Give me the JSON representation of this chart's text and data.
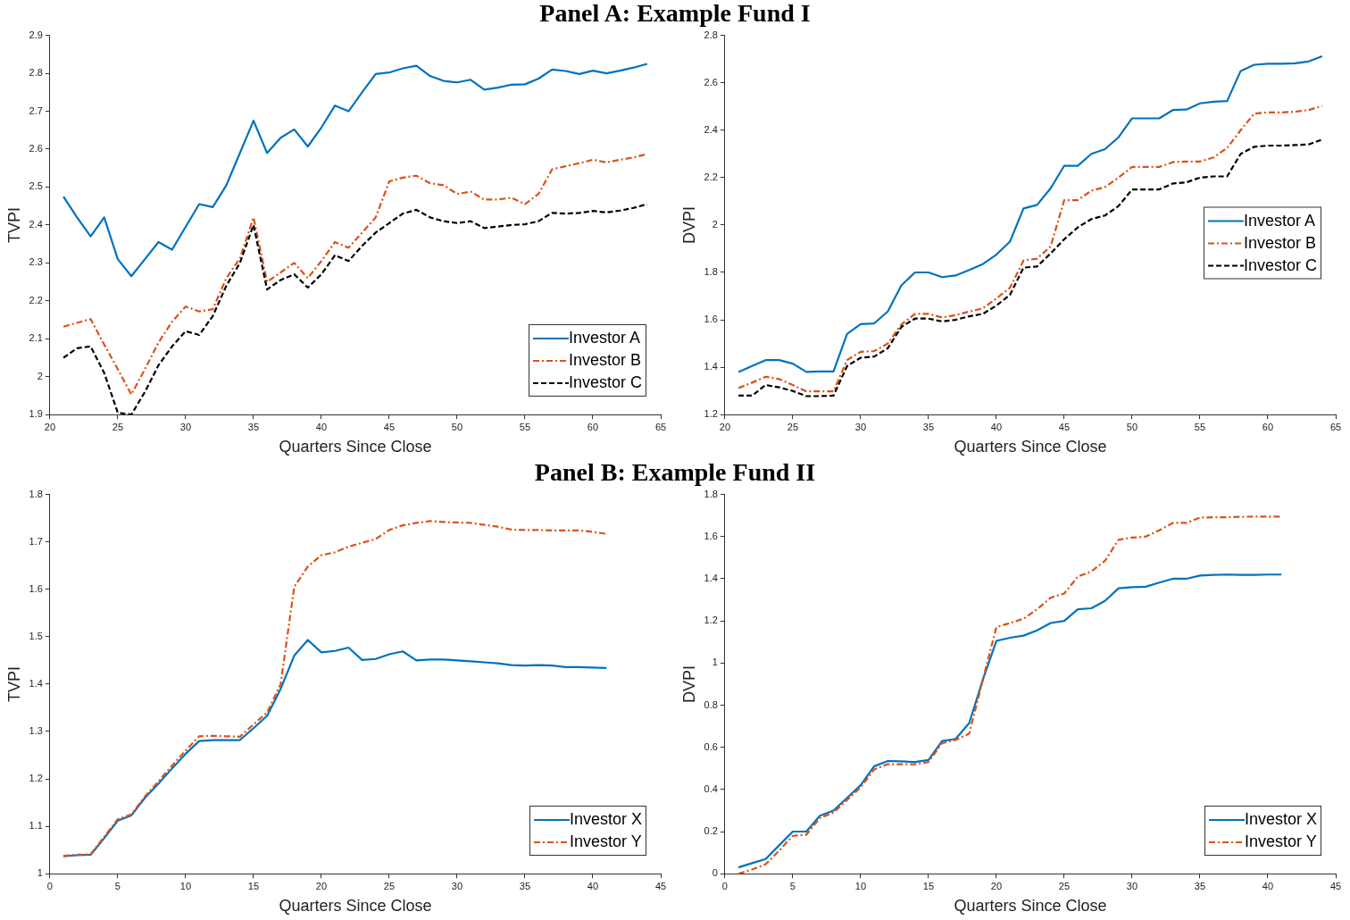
{
  "chart_data": [
    {
      "type": "line",
      "title": "Panel A: Example Fund I",
      "xlabel": "Quarters Since Close",
      "ylabel": "TVPI",
      "xlim": [
        20,
        65
      ],
      "xticks": [
        20,
        25,
        30,
        35,
        40,
        45,
        50,
        55,
        60,
        65
      ],
      "ylim": [
        1.9,
        2.9
      ],
      "yticks": [
        1.9,
        2,
        2.1,
        2.2,
        2.3,
        2.4,
        2.5,
        2.6,
        2.7,
        2.8,
        2.9
      ],
      "legend": "bottom right",
      "marker": "none",
      "x": [
        21,
        22,
        23,
        24,
        25,
        26,
        27,
        28,
        29,
        30,
        31,
        32,
        33,
        34,
        35,
        36,
        37,
        38,
        39,
        40,
        41,
        42,
        43,
        44,
        45,
        46,
        47,
        48,
        49,
        50,
        51,
        52,
        53,
        54,
        55,
        56,
        57,
        58,
        59,
        60,
        61,
        62,
        63,
        64
      ],
      "series": [
        {
          "name": "Investor A",
          "color": "#0072bd",
          "line_style": "solid",
          "values": [
            2.475,
            2.42,
            2.37,
            2.42,
            2.31,
            2.265,
            2.31,
            2.355,
            2.335,
            2.395,
            2.455,
            2.447,
            2.505,
            2.59,
            2.675,
            2.59,
            2.63,
            2.652,
            2.607,
            2.657,
            2.715,
            2.7,
            2.75,
            2.798,
            2.802,
            2.813,
            2.82,
            2.793,
            2.78,
            2.776,
            2.783,
            2.757,
            2.762,
            2.77,
            2.771,
            2.786,
            2.81,
            2.806,
            2.798,
            2.807,
            2.8,
            2.807,
            2.815,
            2.825
          ]
        },
        {
          "name": "Investor B",
          "color": "#d95319",
          "line_style": "dashdot",
          "values": [
            2.132,
            2.142,
            2.152,
            2.085,
            2.02,
            1.953,
            2.02,
            2.09,
            2.145,
            2.185,
            2.172,
            2.178,
            2.26,
            2.312,
            2.42,
            2.25,
            2.275,
            2.3,
            2.26,
            2.305,
            2.355,
            2.34,
            2.38,
            2.42,
            2.515,
            2.525,
            2.53,
            2.51,
            2.505,
            2.482,
            2.488,
            2.467,
            2.467,
            2.472,
            2.455,
            2.482,
            2.547,
            2.555,
            2.563,
            2.572,
            2.565,
            2.572,
            2.578,
            2.587
          ]
        },
        {
          "name": "Investor C",
          "color": "#000000",
          "line_style": "dashed",
          "values": [
            2.05,
            2.075,
            2.08,
            2.01,
            1.905,
            1.9,
            1.96,
            2.03,
            2.08,
            2.12,
            2.11,
            2.16,
            2.24,
            2.3,
            2.4,
            2.23,
            2.255,
            2.27,
            2.235,
            2.27,
            2.32,
            2.305,
            2.345,
            2.38,
            2.405,
            2.43,
            2.44,
            2.42,
            2.41,
            2.405,
            2.41,
            2.392,
            2.396,
            2.4,
            2.402,
            2.41,
            2.432,
            2.43,
            2.432,
            2.437,
            2.433,
            2.438,
            2.445,
            2.455
          ]
        }
      ]
    },
    {
      "type": "line",
      "xlabel": "Quarters Since Close",
      "ylabel": "DVPI",
      "xlim": [
        20,
        65
      ],
      "xticks": [
        20,
        25,
        30,
        35,
        40,
        45,
        50,
        55,
        60,
        65
      ],
      "ylim": [
        1.2,
        2.8
      ],
      "yticks": [
        1.2,
        1.4,
        1.6,
        1.8,
        2,
        2.2,
        2.4,
        2.6,
        2.8
      ],
      "legend": "right",
      "marker": "none",
      "x": [
        21,
        22,
        23,
        24,
        25,
        26,
        27,
        28,
        29,
        30,
        31,
        32,
        33,
        34,
        35,
        36,
        37,
        38,
        39,
        40,
        41,
        42,
        43,
        44,
        45,
        46,
        47,
        48,
        49,
        50,
        51,
        52,
        53,
        54,
        55,
        56,
        57,
        58,
        59,
        60,
        61,
        62,
        63,
        64
      ],
      "series": [
        {
          "name": "Investor A",
          "color": "#0072bd",
          "line_style": "solid",
          "values": [
            1.38,
            1.405,
            1.43,
            1.43,
            1.415,
            1.38,
            1.382,
            1.382,
            1.54,
            1.582,
            1.585,
            1.635,
            1.745,
            1.8,
            1.8,
            1.78,
            1.787,
            1.81,
            1.835,
            1.875,
            1.93,
            2.07,
            2.085,
            2.155,
            2.25,
            2.25,
            2.3,
            2.32,
            2.37,
            2.45,
            2.45,
            2.45,
            2.485,
            2.487,
            2.513,
            2.52,
            2.523,
            2.65,
            2.676,
            2.68,
            2.68,
            2.682,
            2.69,
            2.712
          ]
        },
        {
          "name": "Investor B",
          "color": "#d95319",
          "line_style": "dashdot",
          "values": [
            1.312,
            1.335,
            1.36,
            1.35,
            1.325,
            1.298,
            1.298,
            1.298,
            1.43,
            1.465,
            1.468,
            1.5,
            1.58,
            1.625,
            1.625,
            1.61,
            1.62,
            1.635,
            1.648,
            1.69,
            1.735,
            1.85,
            1.858,
            1.91,
            2.105,
            2.105,
            2.145,
            2.16,
            2.2,
            2.245,
            2.245,
            2.245,
            2.265,
            2.268,
            2.268,
            2.285,
            2.325,
            2.4,
            2.47,
            2.475,
            2.475,
            2.478,
            2.485,
            2.502
          ]
        },
        {
          "name": "Investor C",
          "color": "#000000",
          "line_style": "dashed",
          "values": [
            1.28,
            1.28,
            1.325,
            1.315,
            1.3,
            1.278,
            1.278,
            1.28,
            1.405,
            1.44,
            1.445,
            1.48,
            1.57,
            1.605,
            1.605,
            1.593,
            1.6,
            1.615,
            1.625,
            1.66,
            1.705,
            1.82,
            1.825,
            1.88,
            1.94,
            1.99,
            2.025,
            2.04,
            2.08,
            2.15,
            2.15,
            2.15,
            2.175,
            2.18,
            2.2,
            2.205,
            2.205,
            2.3,
            2.33,
            2.335,
            2.335,
            2.337,
            2.34,
            2.36
          ]
        }
      ]
    },
    {
      "type": "line",
      "title": "Panel B: Example Fund II",
      "xlabel": "Quarters Since Close",
      "ylabel": "TVPI",
      "xlim": [
        0,
        45
      ],
      "xticks": [
        0,
        5,
        10,
        15,
        20,
        25,
        30,
        35,
        40,
        45
      ],
      "ylim": [
        1,
        1.8
      ],
      "yticks": [
        1,
        1.1,
        1.2,
        1.3,
        1.4,
        1.5,
        1.6,
        1.7,
        1.8
      ],
      "legend": "bottom right",
      "marker": "none",
      "x": [
        1,
        2,
        3,
        4,
        5,
        6,
        7,
        8,
        9,
        10,
        11,
        12,
        13,
        14,
        15,
        16,
        17,
        18,
        19,
        20,
        21,
        22,
        23,
        24,
        25,
        26,
        27,
        28,
        29,
        30,
        31,
        32,
        33,
        34,
        35,
        36,
        37,
        38,
        39,
        40,
        41
      ],
      "series": [
        {
          "name": "Investor X",
          "color": "#0072bd",
          "line_style": "solid",
          "values": [
            1.037,
            1.039,
            1.04,
            1.075,
            1.112,
            1.123,
            1.16,
            1.19,
            1.222,
            1.253,
            1.28,
            1.282,
            1.282,
            1.282,
            1.307,
            1.333,
            1.39,
            1.46,
            1.493,
            1.467,
            1.47,
            1.477,
            1.451,
            1.453,
            1.463,
            1.469,
            1.45,
            1.452,
            1.452,
            1.45,
            1.448,
            1.446,
            1.444,
            1.44,
            1.439,
            1.44,
            1.439,
            1.436,
            1.436,
            1.435,
            1.434
          ]
        },
        {
          "name": "Investor Y",
          "color": "#d95319",
          "line_style": "dashdot",
          "values": [
            1.038,
            1.04,
            1.041,
            1.078,
            1.115,
            1.125,
            1.163,
            1.195,
            1.228,
            1.26,
            1.29,
            1.291,
            1.29,
            1.289,
            1.315,
            1.34,
            1.4,
            1.605,
            1.648,
            1.672,
            1.678,
            1.69,
            1.698,
            1.706,
            1.725,
            1.735,
            1.74,
            1.744,
            1.742,
            1.741,
            1.74,
            1.736,
            1.732,
            1.726,
            1.725,
            1.725,
            1.724,
            1.724,
            1.724,
            1.721,
            1.717
          ]
        }
      ]
    },
    {
      "type": "line",
      "xlabel": "Quarters Since Close",
      "ylabel": "DVPI",
      "xlim": [
        0,
        45
      ],
      "xticks": [
        0,
        5,
        10,
        15,
        20,
        25,
        30,
        35,
        40,
        45
      ],
      "ylim": [
        0,
        1.8
      ],
      "yticks": [
        0,
        0.2,
        0.4,
        0.6,
        0.8,
        1,
        1.2,
        1.4,
        1.6,
        1.8
      ],
      "legend": "bottom right",
      "marker": "none",
      "x": [
        1,
        2,
        3,
        4,
        5,
        6,
        7,
        8,
        9,
        10,
        11,
        12,
        13,
        14,
        15,
        16,
        17,
        18,
        19,
        20,
        21,
        22,
        23,
        24,
        25,
        26,
        27,
        28,
        29,
        30,
        31,
        32,
        33,
        34,
        35,
        36,
        37,
        38,
        39,
        40,
        41
      ],
      "series": [
        {
          "name": "Investor X",
          "color": "#0072bd",
          "line_style": "solid",
          "values": [
            0.03,
            0.05,
            0.07,
            0.135,
            0.2,
            0.2,
            0.275,
            0.3,
            0.36,
            0.42,
            0.51,
            0.535,
            0.533,
            0.53,
            0.54,
            0.63,
            0.64,
            0.715,
            0.92,
            1.105,
            1.12,
            1.13,
            1.155,
            1.19,
            1.2,
            1.255,
            1.26,
            1.295,
            1.355,
            1.36,
            1.362,
            1.382,
            1.4,
            1.4,
            1.415,
            1.418,
            1.42,
            1.418,
            1.418,
            1.42,
            1.42
          ]
        },
        {
          "name": "Investor Y",
          "color": "#d95319",
          "line_style": "dashdot",
          "values": [
            0,
            0.02,
            0.045,
            0.11,
            0.18,
            0.185,
            0.265,
            0.29,
            0.35,
            0.41,
            0.495,
            0.52,
            0.52,
            0.52,
            0.53,
            0.62,
            0.635,
            0.665,
            0.92,
            1.17,
            1.19,
            1.21,
            1.255,
            1.31,
            1.33,
            1.41,
            1.435,
            1.485,
            1.585,
            1.595,
            1.6,
            1.63,
            1.665,
            1.665,
            1.69,
            1.692,
            1.692,
            1.694,
            1.695,
            1.695,
            1.695
          ]
        }
      ]
    }
  ]
}
